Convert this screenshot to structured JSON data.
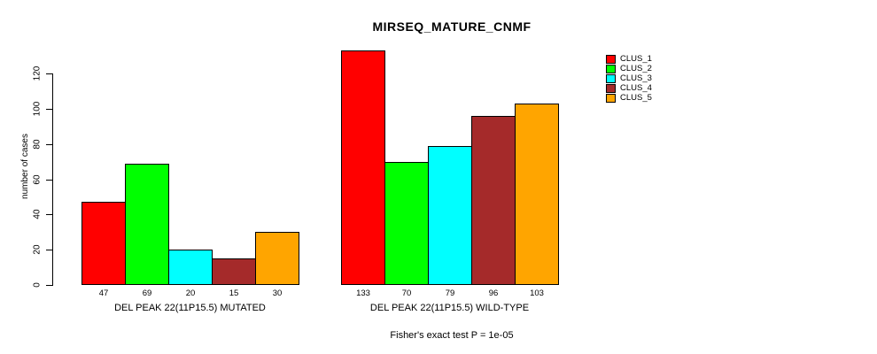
{
  "chart_data": {
    "type": "bar",
    "title": "MIRSEQ_MATURE_CNMF",
    "ylabel": "number of cases",
    "xlabel": "",
    "footnote": "Fisher's exact test P = 1e-05",
    "ylim": [
      0,
      133
    ],
    "yticks": [
      0,
      20,
      40,
      60,
      80,
      100,
      120
    ],
    "grid": false,
    "legend_position": "right",
    "series": [
      {
        "name": "CLUS_1",
        "color": "#ff0000"
      },
      {
        "name": "CLUS_2",
        "color": "#00ff00"
      },
      {
        "name": "CLUS_3",
        "color": "#00ffff"
      },
      {
        "name": "CLUS_4",
        "color": "#a52a2a"
      },
      {
        "name": "CLUS_5",
        "color": "#ffa500"
      }
    ],
    "groups": [
      {
        "label": "DEL PEAK 22(11P15.5) MUTATED",
        "values": [
          47,
          69,
          20,
          15,
          30
        ]
      },
      {
        "label": "DEL PEAK 22(11P15.5) WILD-TYPE",
        "values": [
          133,
          70,
          79,
          96,
          103
        ]
      }
    ]
  }
}
